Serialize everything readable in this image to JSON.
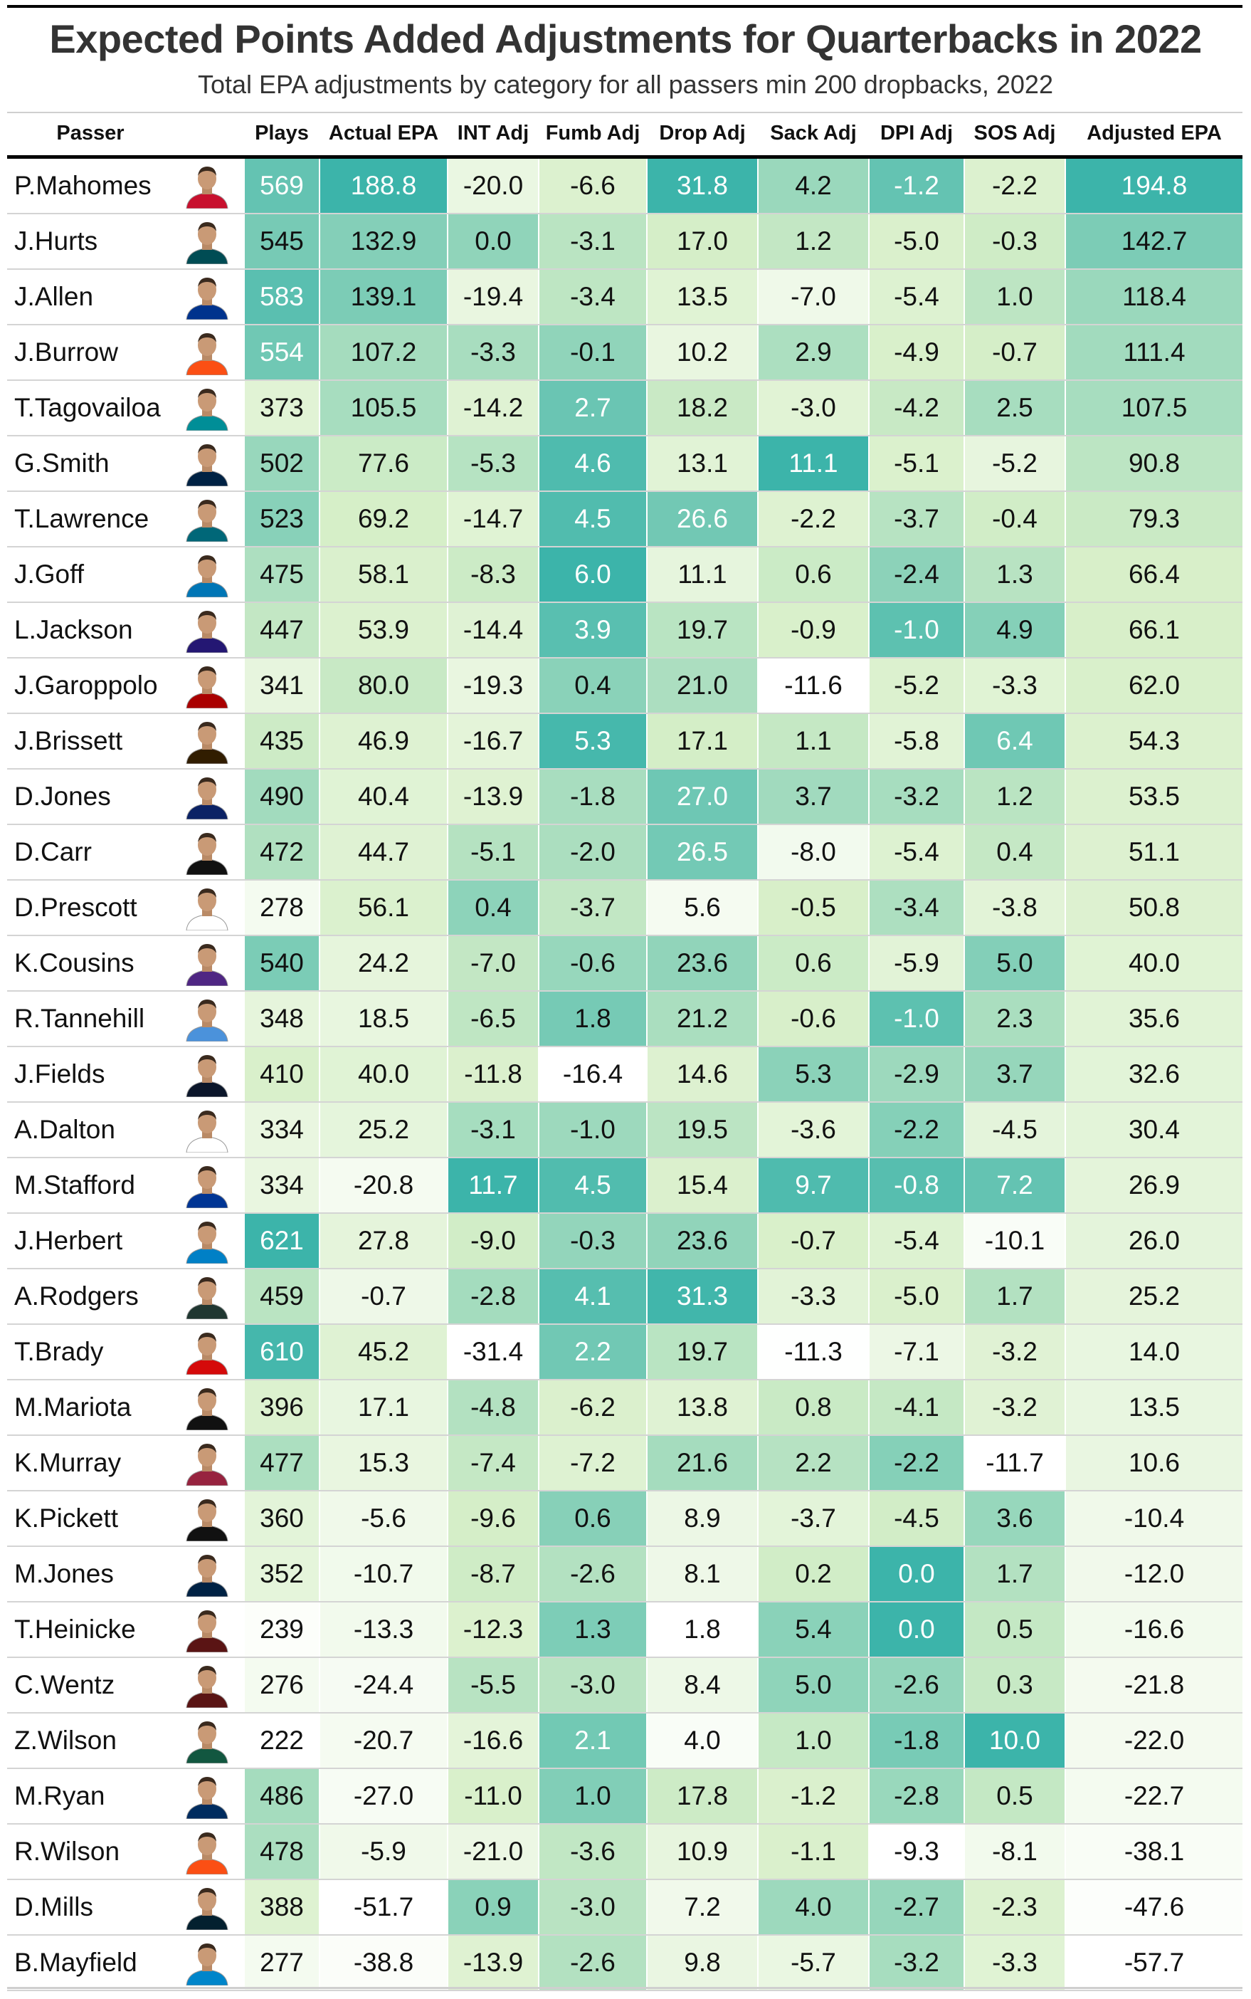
{
  "chart_data": {
    "type": "table",
    "title": "Expected Points Added Adjustments for Quarterbacks in 2022",
    "subtitle": "Total EPA adjustments by category for all passers min 200 dropbacks, 2022",
    "columns": [
      "Passer",
      "Plays",
      "Actual EPA",
      "INT Adj",
      "Fumb Adj",
      "Drop Adj",
      "Sack Adj",
      "DPI Adj",
      "SOS Adj",
      "Adjusted EPA"
    ],
    "colors": {
      "low": "#ffffff",
      "mid": "#d7efc8",
      "high": "#3cb4aa",
      "text_dark": "#111111",
      "text_light": "#ffffff"
    },
    "rows": [
      {
        "passer": "P.Mahomes",
        "plays": "569",
        "actual": "188.8",
        "int": "-20.0",
        "fumb": "-6.6",
        "drop": "31.8",
        "sack": "4.2",
        "dpi": "-1.2",
        "sos": "-2.2",
        "adjusted": "194.8",
        "jersey": "#c8102e",
        "helmet": "#c8102e"
      },
      {
        "passer": "J.Hurts",
        "plays": "545",
        "actual": "132.9",
        "int": "0.0",
        "fumb": "-3.1",
        "drop": "17.0",
        "sack": "1.2",
        "dpi": "-5.0",
        "sos": "-0.3",
        "adjusted": "142.7",
        "jersey": "#004c54",
        "helmet": "#004c54"
      },
      {
        "passer": "J.Allen",
        "plays": "583",
        "actual": "139.1",
        "int": "-19.4",
        "fumb": "-3.4",
        "drop": "13.5",
        "sack": "-7.0",
        "dpi": "-5.4",
        "sos": "1.0",
        "adjusted": "118.4",
        "jersey": "#00338d",
        "helmet": "#ffffff"
      },
      {
        "passer": "J.Burrow",
        "plays": "554",
        "actual": "107.2",
        "int": "-3.3",
        "fumb": "-0.1",
        "drop": "10.2",
        "sack": "2.9",
        "dpi": "-4.9",
        "sos": "-0.7",
        "adjusted": "111.4",
        "jersey": "#fb4f14",
        "helmet": "#111111"
      },
      {
        "passer": "T.Tagovailoa",
        "plays": "373",
        "actual": "105.5",
        "int": "-14.2",
        "fumb": "2.7",
        "drop": "18.2",
        "sack": "-3.0",
        "dpi": "-4.2",
        "sos": "2.5",
        "adjusted": "107.5",
        "jersey": "#008e97",
        "helmet": "#ffffff"
      },
      {
        "passer": "G.Smith",
        "plays": "502",
        "actual": "77.6",
        "int": "-5.3",
        "fumb": "4.6",
        "drop": "13.1",
        "sack": "11.1",
        "dpi": "-5.1",
        "sos": "-5.2",
        "adjusted": "90.8",
        "jersey": "#002244",
        "helmet": "#002244"
      },
      {
        "passer": "T.Lawrence",
        "plays": "523",
        "actual": "69.2",
        "int": "-14.7",
        "fumb": "4.5",
        "drop": "26.6",
        "sack": "-2.2",
        "dpi": "-3.7",
        "sos": "-0.4",
        "adjusted": "79.3",
        "jersey": "#006778",
        "helmet": "#111111"
      },
      {
        "passer": "J.Goff",
        "plays": "475",
        "actual": "58.1",
        "int": "-8.3",
        "fumb": "6.0",
        "drop": "11.1",
        "sack": "0.6",
        "dpi": "-2.4",
        "sos": "1.3",
        "adjusted": "66.4",
        "jersey": "#0076b6",
        "helmet": "#b0b7bc"
      },
      {
        "passer": "L.Jackson",
        "plays": "447",
        "actual": "53.9",
        "int": "-14.4",
        "fumb": "3.9",
        "drop": "19.7",
        "sack": "-0.9",
        "dpi": "-1.0",
        "sos": "4.9",
        "adjusted": "66.1",
        "jersey": "#241773",
        "helmet": "#241773"
      },
      {
        "passer": "J.Garoppolo",
        "plays": "341",
        "actual": "80.0",
        "int": "-19.3",
        "fumb": "0.4",
        "drop": "21.0",
        "sack": "-11.6",
        "dpi": "-5.2",
        "sos": "-3.3",
        "adjusted": "62.0",
        "jersey": "#aa0000",
        "helmet": "#b3995d"
      },
      {
        "passer": "J.Brissett",
        "plays": "435",
        "actual": "46.9",
        "int": "-16.7",
        "fumb": "5.3",
        "drop": "17.1",
        "sack": "1.1",
        "dpi": "-5.8",
        "sos": "6.4",
        "adjusted": "54.3",
        "jersey": "#311d00",
        "helmet": "#ff3c00"
      },
      {
        "passer": "D.Jones",
        "plays": "490",
        "actual": "40.4",
        "int": "-13.9",
        "fumb": "-1.8",
        "drop": "27.0",
        "sack": "3.7",
        "dpi": "-3.2",
        "sos": "1.2",
        "adjusted": "53.5",
        "jersey": "#0b2265",
        "helmet": "#0b2265"
      },
      {
        "passer": "D.Carr",
        "plays": "472",
        "actual": "44.7",
        "int": "-5.1",
        "fumb": "-2.0",
        "drop": "26.5",
        "sack": "-8.0",
        "dpi": "-5.4",
        "sos": "0.4",
        "adjusted": "51.1",
        "jersey": "#111111",
        "helmet": "#a5acaf"
      },
      {
        "passer": "D.Prescott",
        "plays": "278",
        "actual": "56.1",
        "int": "0.4",
        "fumb": "-3.7",
        "drop": "5.6",
        "sack": "-0.5",
        "dpi": "-3.4",
        "sos": "-3.8",
        "adjusted": "50.8",
        "jersey": "#ffffff",
        "helmet": "#869397"
      },
      {
        "passer": "K.Cousins",
        "plays": "540",
        "actual": "24.2",
        "int": "-7.0",
        "fumb": "-0.6",
        "drop": "23.6",
        "sack": "0.6",
        "dpi": "-5.9",
        "sos": "5.0",
        "adjusted": "40.0",
        "jersey": "#4f2683",
        "helmet": "#4f2683"
      },
      {
        "passer": "R.Tannehill",
        "plays": "348",
        "actual": "18.5",
        "int": "-6.5",
        "fumb": "1.8",
        "drop": "21.2",
        "sack": "-0.6",
        "dpi": "-1.0",
        "sos": "2.3",
        "adjusted": "35.6",
        "jersey": "#4b92db",
        "helmet": "#0c2340"
      },
      {
        "passer": "J.Fields",
        "plays": "410",
        "actual": "40.0",
        "int": "-11.8",
        "fumb": "-16.4",
        "drop": "14.6",
        "sack": "5.3",
        "dpi": "-2.9",
        "sos": "3.7",
        "adjusted": "32.6",
        "jersey": "#0b162a",
        "helmet": "#0b162a"
      },
      {
        "passer": "A.Dalton",
        "plays": "334",
        "actual": "25.2",
        "int": "-3.1",
        "fumb": "-1.0",
        "drop": "19.5",
        "sack": "-3.6",
        "dpi": "-2.2",
        "sos": "-4.5",
        "adjusted": "30.4",
        "jersey": "#ffffff",
        "helmet": "#d3bc8d"
      },
      {
        "passer": "M.Stafford",
        "plays": "334",
        "actual": "-20.8",
        "int": "11.7",
        "fumb": "4.5",
        "drop": "15.4",
        "sack": "9.7",
        "dpi": "-0.8",
        "sos": "7.2",
        "adjusted": "26.9",
        "jersey": "#003594",
        "helmet": "#ffffff"
      },
      {
        "passer": "J.Herbert",
        "plays": "621",
        "actual": "27.8",
        "int": "-9.0",
        "fumb": "-0.3",
        "drop": "23.6",
        "sack": "-0.7",
        "dpi": "-5.4",
        "sos": "-10.1",
        "adjusted": "26.0",
        "jersey": "#0080c6",
        "helmet": "#ffffff"
      },
      {
        "passer": "A.Rodgers",
        "plays": "459",
        "actual": "-0.7",
        "int": "-2.8",
        "fumb": "4.1",
        "drop": "31.3",
        "sack": "-3.3",
        "dpi": "-5.0",
        "sos": "1.7",
        "adjusted": "25.2",
        "jersey": "#203731",
        "helmet": "#ffb612"
      },
      {
        "passer": "T.Brady",
        "plays": "610",
        "actual": "45.2",
        "int": "-31.4",
        "fumb": "2.2",
        "drop": "19.7",
        "sack": "-11.3",
        "dpi": "-7.1",
        "sos": "-3.2",
        "adjusted": "14.0",
        "jersey": "#d50a0a",
        "helmet": "#d50a0a"
      },
      {
        "passer": "M.Mariota",
        "plays": "396",
        "actual": "17.1",
        "int": "-4.8",
        "fumb": "-6.2",
        "drop": "13.8",
        "sack": "0.8",
        "dpi": "-4.1",
        "sos": "-3.2",
        "adjusted": "13.5",
        "jersey": "#111111",
        "helmet": "#111111"
      },
      {
        "passer": "K.Murray",
        "plays": "477",
        "actual": "15.3",
        "int": "-7.4",
        "fumb": "-7.2",
        "drop": "21.6",
        "sack": "2.2",
        "dpi": "-2.2",
        "sos": "-11.7",
        "adjusted": "10.6",
        "jersey": "#97233f",
        "helmet": "#ffffff"
      },
      {
        "passer": "K.Pickett",
        "plays": "360",
        "actual": "-5.6",
        "int": "-9.6",
        "fumb": "0.6",
        "drop": "8.9",
        "sack": "-3.7",
        "dpi": "-4.5",
        "sos": "3.6",
        "adjusted": "-10.4",
        "jersey": "#111111",
        "helmet": "#111111"
      },
      {
        "passer": "M.Jones",
        "plays": "352",
        "actual": "-10.7",
        "int": "-8.7",
        "fumb": "-2.6",
        "drop": "8.1",
        "sack": "0.2",
        "dpi": "0.0",
        "sos": "1.7",
        "adjusted": "-12.0",
        "jersey": "#002244",
        "helmet": "#c60c30"
      },
      {
        "passer": "T.Heinicke",
        "plays": "239",
        "actual": "-13.3",
        "int": "-12.3",
        "fumb": "1.3",
        "drop": "1.8",
        "sack": "5.4",
        "dpi": "0.0",
        "sos": "0.5",
        "adjusted": "-16.6",
        "jersey": "#5a1414",
        "helmet": "#5a1414"
      },
      {
        "passer": "C.Wentz",
        "plays": "276",
        "actual": "-24.4",
        "int": "-5.5",
        "fumb": "-3.0",
        "drop": "8.4",
        "sack": "5.0",
        "dpi": "-2.6",
        "sos": "0.3",
        "adjusted": "-21.8",
        "jersey": "#5a1414",
        "helmet": "#ffb612"
      },
      {
        "passer": "Z.Wilson",
        "plays": "222",
        "actual": "-20.7",
        "int": "-16.6",
        "fumb": "2.1",
        "drop": "4.0",
        "sack": "1.0",
        "dpi": "-1.8",
        "sos": "10.0",
        "adjusted": "-22.0",
        "jersey": "#125740",
        "helmet": "#125740"
      },
      {
        "passer": "M.Ryan",
        "plays": "486",
        "actual": "-27.0",
        "int": "-11.0",
        "fumb": "1.0",
        "drop": "17.8",
        "sack": "-1.2",
        "dpi": "-2.8",
        "sos": "0.5",
        "adjusted": "-22.7",
        "jersey": "#002c5f",
        "helmet": "#ffffff"
      },
      {
        "passer": "R.Wilson",
        "plays": "478",
        "actual": "-5.9",
        "int": "-21.0",
        "fumb": "-3.6",
        "drop": "10.9",
        "sack": "-1.1",
        "dpi": "-9.3",
        "sos": "-8.1",
        "adjusted": "-38.1",
        "jersey": "#fb4f14",
        "helmet": "#002244"
      },
      {
        "passer": "D.Mills",
        "plays": "388",
        "actual": "-51.7",
        "int": "0.9",
        "fumb": "-3.0",
        "drop": "7.2",
        "sack": "4.0",
        "dpi": "-2.7",
        "sos": "-2.3",
        "adjusted": "-47.6",
        "jersey": "#03202f",
        "helmet": "#03202f"
      },
      {
        "passer": "B.Mayfield",
        "plays": "277",
        "actual": "-38.8",
        "int": "-13.9",
        "fumb": "-2.6",
        "drop": "9.8",
        "sack": "-5.7",
        "dpi": "-3.2",
        "sos": "-3.3",
        "adjusted": "-57.7",
        "jersey": "#0085ca",
        "helmet": "#101820"
      }
    ]
  }
}
